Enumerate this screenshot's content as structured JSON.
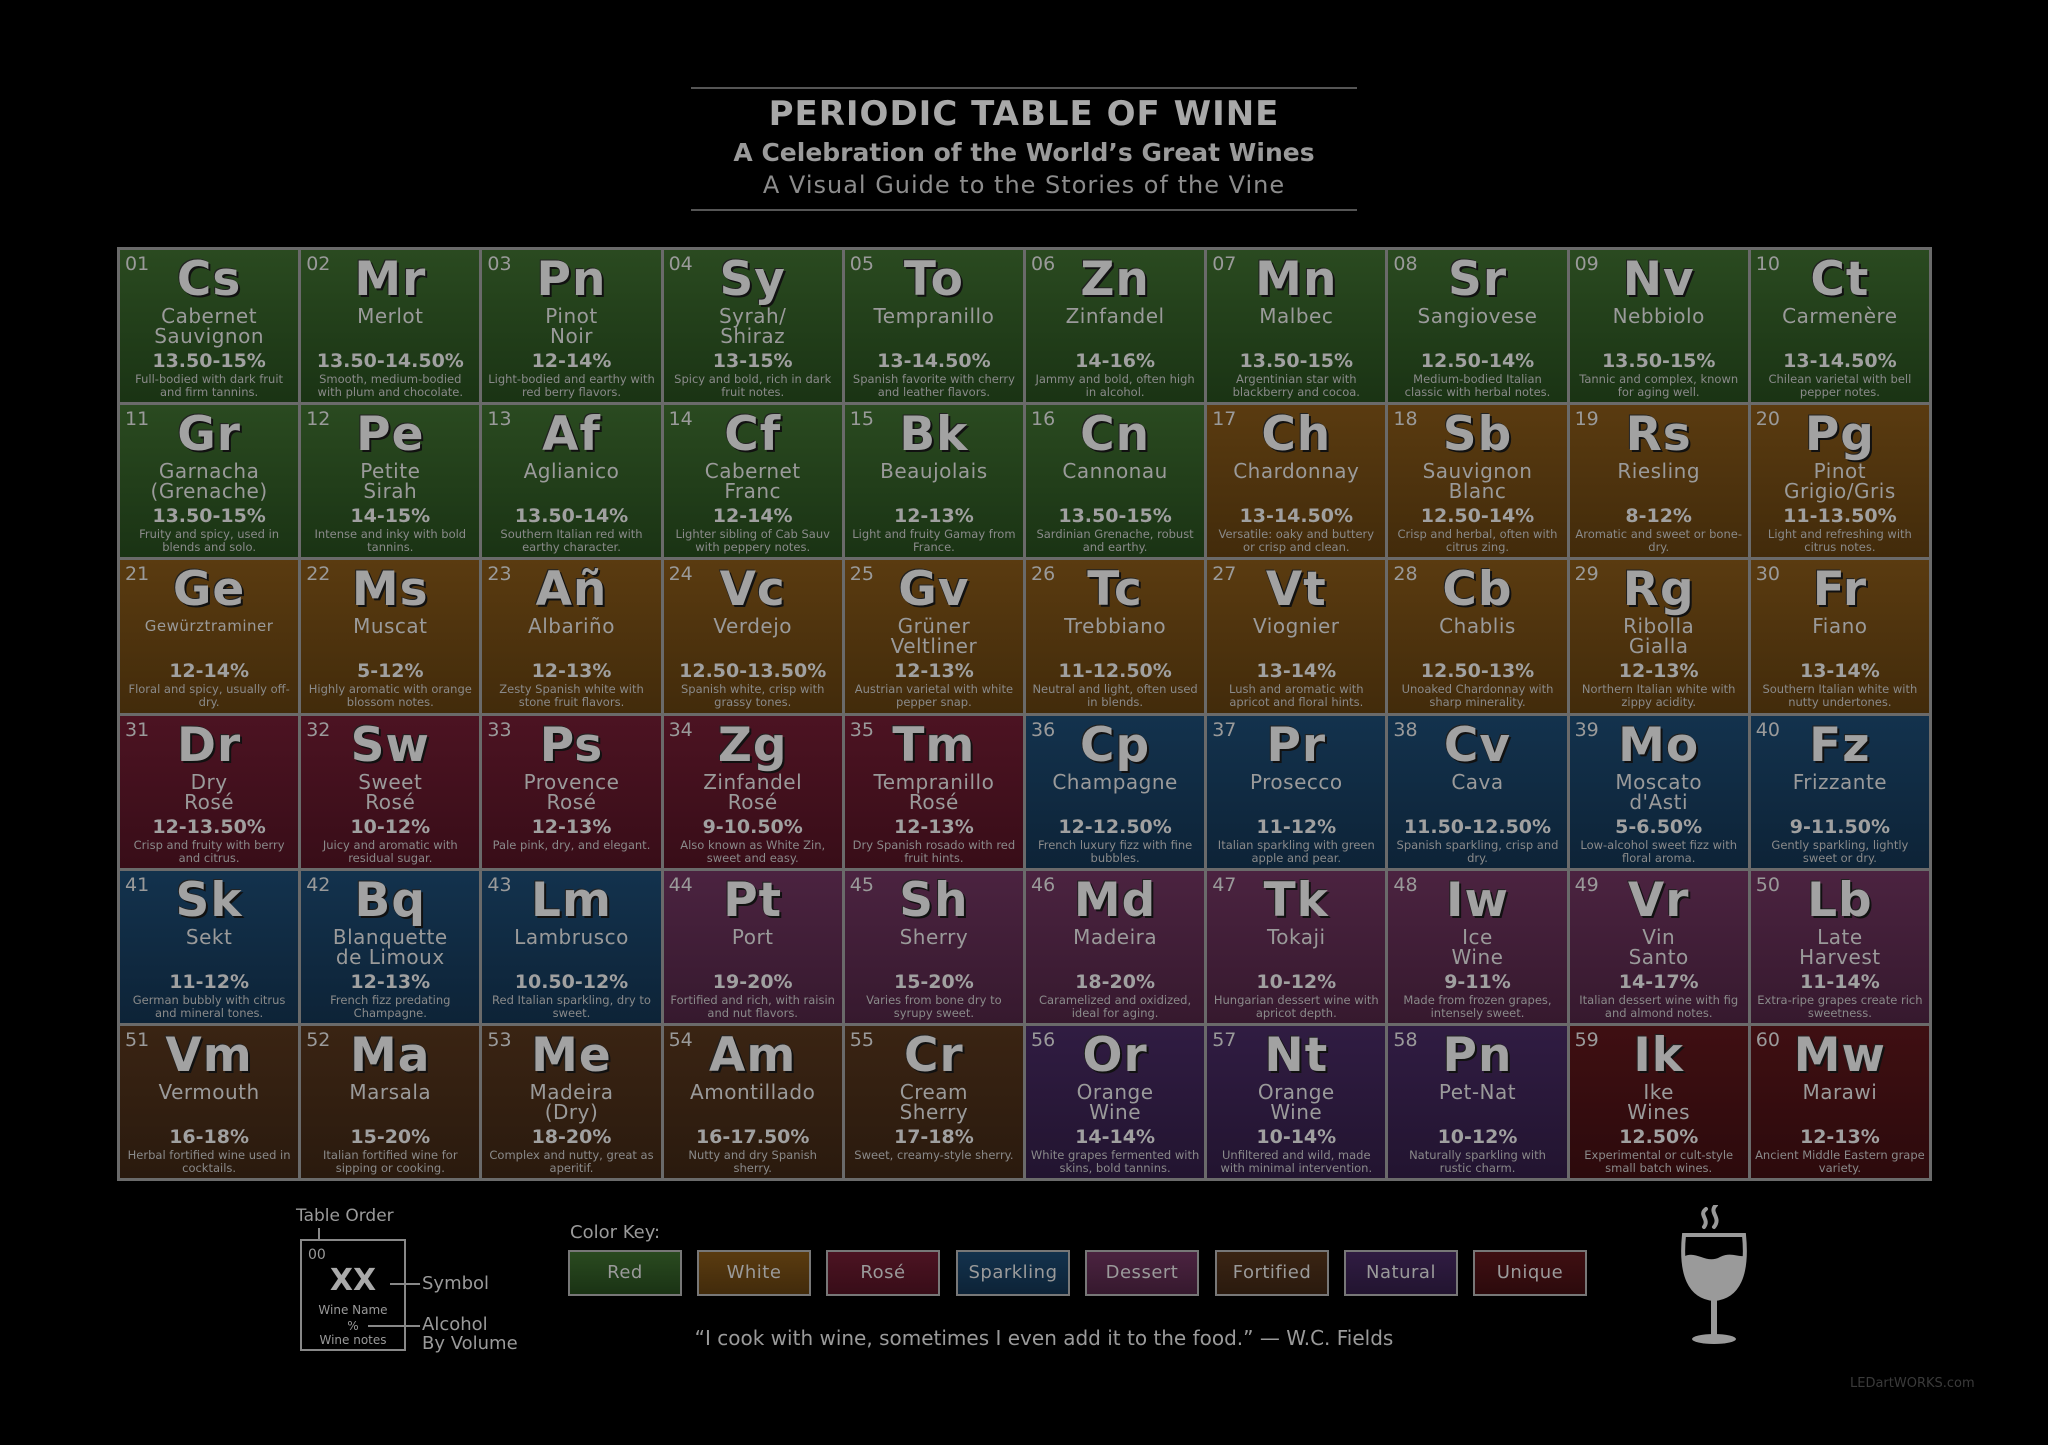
{
  "header": {
    "title": "PERIODIC TABLE OF WINE",
    "subtitle": "A Celebration of the World’s Great Wines",
    "tagline": "A Visual Guide to the Stories of the Vine"
  },
  "colors": {
    "red": "#2a4a20",
    "white": "#5a3b10",
    "rose": "#4c1322",
    "sparkling": "#13324d",
    "dessert": "#4b2340",
    "fortified": "#3a2413",
    "natural": "#301c42",
    "unique": "#3f0f12"
  },
  "elements": [
    {
      "num": "01",
      "sym": "Cs",
      "name": "Cabernet\nSauvignon",
      "abv": "13.50-15%",
      "note": "Full-bodied with dark fruit and firm tannins.",
      "cat": "red"
    },
    {
      "num": "02",
      "sym": "Mr",
      "name": "Merlot",
      "abv": "13.50-14.50%",
      "note": "Smooth, medium-bodied with plum and chocolate.",
      "cat": "red"
    },
    {
      "num": "03",
      "sym": "Pn",
      "name": "Pinot\nNoir",
      "abv": "12-14%",
      "note": "Light-bodied and earthy with red berry flavors.",
      "cat": "red"
    },
    {
      "num": "04",
      "sym": "Sy",
      "name": "Syrah/\nShiraz",
      "abv": "13-15%",
      "note": "Spicy and bold, rich in dark fruit notes.",
      "cat": "red"
    },
    {
      "num": "05",
      "sym": "To",
      "name": "Tempranillo",
      "abv": "13-14.50%",
      "note": "Spanish favorite with cherry and leather flavors.",
      "cat": "red"
    },
    {
      "num": "06",
      "sym": "Zn",
      "name": "Zinfandel",
      "abv": "14-16%",
      "note": "Jammy and bold, often high in alcohol.",
      "cat": "red"
    },
    {
      "num": "07",
      "sym": "Mn",
      "name": "Malbec",
      "abv": "13.50-15%",
      "note": "Argentinian star with blackberry and cocoa.",
      "cat": "red"
    },
    {
      "num": "08",
      "sym": "Sr",
      "name": "Sangiovese",
      "abv": "12.50-14%",
      "note": "Medium-bodied Italian classic with herbal notes.",
      "cat": "red"
    },
    {
      "num": "09",
      "sym": "Nv",
      "name": "Nebbiolo",
      "abv": "13.50-15%",
      "note": "Tannic and complex, known for aging well.",
      "cat": "red"
    },
    {
      "num": "10",
      "sym": "Ct",
      "name": "Carmenère",
      "abv": "13-14.50%",
      "note": "Chilean varietal with bell pepper notes.",
      "cat": "red"
    },
    {
      "num": "11",
      "sym": "Gr",
      "name": "Garnacha\n(Grenache)",
      "abv": "13.50-15%",
      "note": "Fruity and spicy, used in blends and solo.",
      "cat": "red"
    },
    {
      "num": "12",
      "sym": "Pe",
      "name": "Petite\nSirah",
      "abv": "14-15%",
      "note": "Intense and inky with bold tannins.",
      "cat": "red"
    },
    {
      "num": "13",
      "sym": "Af",
      "name": "Aglianico",
      "abv": "13.50-14%",
      "note": "Southern Italian red with earthy character.",
      "cat": "red"
    },
    {
      "num": "14",
      "sym": "Cf",
      "name": "Cabernet\nFranc",
      "abv": "12-14%",
      "note": "Lighter sibling of Cab Sauv with peppery notes.",
      "cat": "red"
    },
    {
      "num": "15",
      "sym": "Bk",
      "name": "Beaujolais",
      "abv": "12-13%",
      "note": "Light and fruity Gamay from France.",
      "cat": "red"
    },
    {
      "num": "16",
      "sym": "Cn",
      "name": "Cannonau",
      "abv": "13.50-15%",
      "note": "Sardinian Grenache, robust and earthy.",
      "cat": "red"
    },
    {
      "num": "17",
      "sym": "Ch",
      "name": "Chardonnay",
      "abv": "13-14.50%",
      "note": "Versatile: oaky and buttery or crisp and clean.",
      "cat": "white"
    },
    {
      "num": "18",
      "sym": "Sb",
      "name": "Sauvignon\nBlanc",
      "abv": "12.50-14%",
      "note": "Crisp and herbal, often with citrus zing.",
      "cat": "white"
    },
    {
      "num": "19",
      "sym": "Rs",
      "name": "Riesling",
      "abv": "8-12%",
      "note": "Aromatic and sweet or bone-dry.",
      "cat": "white"
    },
    {
      "num": "20",
      "sym": "Pg",
      "name": "Pinot\nGrigio/Gris",
      "abv": "11-13.50%",
      "note": "Light and refreshing with citrus notes.",
      "cat": "white"
    },
    {
      "num": "21",
      "sym": "Ge",
      "name": "Gewürztraminer",
      "abv": "12-14%",
      "note": "Floral and spicy, usually off-dry.",
      "cat": "white",
      "small": true
    },
    {
      "num": "22",
      "sym": "Ms",
      "name": "Muscat",
      "abv": "5-12%",
      "note": "Highly aromatic with orange blossom notes.",
      "cat": "white"
    },
    {
      "num": "23",
      "sym": "Añ",
      "name": "Albariño",
      "abv": "12-13%",
      "note": "Zesty Spanish white with stone fruit flavors.",
      "cat": "white"
    },
    {
      "num": "24",
      "sym": "Vc",
      "name": "Verdejo",
      "abv": "12.50-13.50%",
      "note": "Spanish white, crisp with grassy tones.",
      "cat": "white"
    },
    {
      "num": "25",
      "sym": "Gv",
      "name": "Grüner\nVeltliner",
      "abv": "12-13%",
      "note": "Austrian varietal with white pepper snap.",
      "cat": "white"
    },
    {
      "num": "26",
      "sym": "Tc",
      "name": "Trebbiano",
      "abv": "11-12.50%",
      "note": "Neutral and light, often used in blends.",
      "cat": "white"
    },
    {
      "num": "27",
      "sym": "Vt",
      "name": "Viognier",
      "abv": "13-14%",
      "note": "Lush and aromatic with apricot and floral hints.",
      "cat": "white"
    },
    {
      "num": "28",
      "sym": "Cb",
      "name": "Chablis",
      "abv": "12.50-13%",
      "note": "Unoaked Chardonnay with sharp minerality.",
      "cat": "white"
    },
    {
      "num": "29",
      "sym": "Rg",
      "name": "Ribolla\nGialla",
      "abv": "12-13%",
      "note": "Northern Italian white with zippy acidity.",
      "cat": "white"
    },
    {
      "num": "30",
      "sym": "Fr",
      "name": "Fiano",
      "abv": "13-14%",
      "note": "Southern Italian white with nutty undertones.",
      "cat": "white"
    },
    {
      "num": "31",
      "sym": "Dr",
      "name": "Dry\nRosé",
      "abv": "12-13.50%",
      "note": "Crisp and fruity with berry and citrus.",
      "cat": "rose"
    },
    {
      "num": "32",
      "sym": "Sw",
      "name": "Sweet\nRosé",
      "abv": "10-12%",
      "note": "Juicy and aromatic with residual sugar.",
      "cat": "rose"
    },
    {
      "num": "33",
      "sym": "Ps",
      "name": "Provence\nRosé",
      "abv": "12-13%",
      "note": "Pale pink, dry, and elegant.",
      "cat": "rose"
    },
    {
      "num": "34",
      "sym": "Zg",
      "name": "Zinfandel\nRosé",
      "abv": "9-10.50%",
      "note": "Also known as White Zin, sweet and easy.",
      "cat": "rose"
    },
    {
      "num": "35",
      "sym": "Tm",
      "name": "Tempranillo\nRosé",
      "abv": "12-13%",
      "note": "Dry Spanish rosado with red fruit hints.",
      "cat": "rose"
    },
    {
      "num": "36",
      "sym": "Cp",
      "name": "Champagne",
      "abv": "12-12.50%",
      "note": "French luxury fizz with fine bubbles.",
      "cat": "sparkling"
    },
    {
      "num": "37",
      "sym": "Pr",
      "name": "Prosecco",
      "abv": "11-12%",
      "note": "Italian sparkling with green apple and pear.",
      "cat": "sparkling"
    },
    {
      "num": "38",
      "sym": "Cv",
      "name": "Cava",
      "abv": "11.50-12.50%",
      "note": "Spanish sparkling, crisp and dry.",
      "cat": "sparkling"
    },
    {
      "num": "39",
      "sym": "Mo",
      "name": "Moscato\nd'Asti",
      "abv": "5-6.50%",
      "note": "Low-alcohol sweet fizz with floral aroma.",
      "cat": "sparkling"
    },
    {
      "num": "40",
      "sym": "Fz",
      "name": "Frizzante",
      "abv": "9-11.50%",
      "note": "Gently sparkling, lightly sweet or dry.",
      "cat": "sparkling"
    },
    {
      "num": "41",
      "sym": "Sk",
      "name": "Sekt",
      "abv": "11-12%",
      "note": "German bubbly with citrus and mineral tones.",
      "cat": "sparkling"
    },
    {
      "num": "42",
      "sym": "Bq",
      "name": "Blanquette\nde Limoux",
      "abv": "12-13%",
      "note": "French fizz predating Champagne.",
      "cat": "sparkling"
    },
    {
      "num": "43",
      "sym": "Lm",
      "name": "Lambrusco",
      "abv": "10.50-12%",
      "note": "Red Italian sparkling, dry to sweet.",
      "cat": "sparkling"
    },
    {
      "num": "44",
      "sym": "Pt",
      "name": "Port",
      "abv": "19-20%",
      "note": "Fortified and rich, with raisin and nut flavors.",
      "cat": "dessert"
    },
    {
      "num": "45",
      "sym": "Sh",
      "name": "Sherry",
      "abv": "15-20%",
      "note": "Varies from bone dry to syrupy sweet.",
      "cat": "dessert"
    },
    {
      "num": "46",
      "sym": "Md",
      "name": "Madeira",
      "abv": "18-20%",
      "note": "Caramelized and oxidized, ideal for aging.",
      "cat": "dessert"
    },
    {
      "num": "47",
      "sym": "Tk",
      "name": "Tokaji",
      "abv": "10-12%",
      "note": "Hungarian dessert wine with apricot depth.",
      "cat": "dessert"
    },
    {
      "num": "48",
      "sym": "Iw",
      "name": "Ice\nWine",
      "abv": "9-11%",
      "note": "Made from frozen grapes, intensely sweet.",
      "cat": "dessert"
    },
    {
      "num": "49",
      "sym": "Vr",
      "name": "Vin\nSanto",
      "abv": "14-17%",
      "note": "Italian dessert wine with fig and almond notes.",
      "cat": "dessert"
    },
    {
      "num": "50",
      "sym": "Lb",
      "name": "Late\nHarvest",
      "abv": "11-14%",
      "note": "Extra-ripe grapes create rich sweetness.",
      "cat": "dessert"
    },
    {
      "num": "51",
      "sym": "Vm",
      "name": "Vermouth",
      "abv": "16-18%",
      "note": "Herbal fortified wine used in cocktails.",
      "cat": "fortified"
    },
    {
      "num": "52",
      "sym": "Ma",
      "name": "Marsala",
      "abv": "15-20%",
      "note": "Italian fortified wine for sipping or cooking.",
      "cat": "fortified"
    },
    {
      "num": "53",
      "sym": "Me",
      "name": "Madeira\n(Dry)",
      "abv": "18-20%",
      "note": "Complex and nutty, great as aperitif.",
      "cat": "fortified"
    },
    {
      "num": "54",
      "sym": "Am",
      "name": "Amontillado",
      "abv": "16-17.50%",
      "note": "Nutty and dry Spanish sherry.",
      "cat": "fortified"
    },
    {
      "num": "55",
      "sym": "Cr",
      "name": "Cream\nSherry",
      "abv": "17-18%",
      "note": "Sweet, creamy-style sherry.",
      "cat": "fortified"
    },
    {
      "num": "56",
      "sym": "Or",
      "name": "Orange\nWine",
      "abv": "14-14%",
      "note": "White grapes fermented with skins, bold tannins.",
      "cat": "natural"
    },
    {
      "num": "57",
      "sym": "Nt",
      "name": "Orange\nWine",
      "abv": "10-14%",
      "note": "Unfiltered and wild, made with minimal intervention.",
      "cat": "natural"
    },
    {
      "num": "58",
      "sym": "Pn",
      "name": "Pet-Nat",
      "abv": "10-12%",
      "note": "Naturally sparkling with rustic charm.",
      "cat": "natural"
    },
    {
      "num": "59",
      "sym": "Ik",
      "name": "Ike\nWines",
      "abv": "12.50%",
      "note": "Experimental or cult-style small batch wines.",
      "cat": "unique"
    },
    {
      "num": "60",
      "sym": "Mw",
      "name": "Marawi",
      "abv": "12-13%",
      "note": "Ancient Middle Eastern grape variety.",
      "cat": "unique"
    }
  ],
  "legend": {
    "table_order": "Table Order",
    "num": "00",
    "sym": "XX",
    "name": "Wine Name",
    "pct": "%",
    "notes": "Wine notes",
    "symbol_label": "Symbol",
    "alcohol_label": "Alcohol",
    "by_volume_label": "By Volume"
  },
  "color_key": {
    "label": "Color Key:",
    "items": [
      {
        "label": "Red",
        "cat": "red"
      },
      {
        "label": "White",
        "cat": "white"
      },
      {
        "label": "Rosé",
        "cat": "rose"
      },
      {
        "label": "Sparkling",
        "cat": "sparkling"
      },
      {
        "label": "Dessert",
        "cat": "dessert"
      },
      {
        "label": "Fortified",
        "cat": "fortified"
      },
      {
        "label": "Natural",
        "cat": "natural"
      },
      {
        "label": "Unique",
        "cat": "unique"
      }
    ]
  },
  "quote": "“I cook with wine, sometimes I even add it to the food.” — W.C. Fields",
  "credit": "LEDartWORKS.com",
  "icons": {
    "glass": "wine-glass-icon"
  }
}
